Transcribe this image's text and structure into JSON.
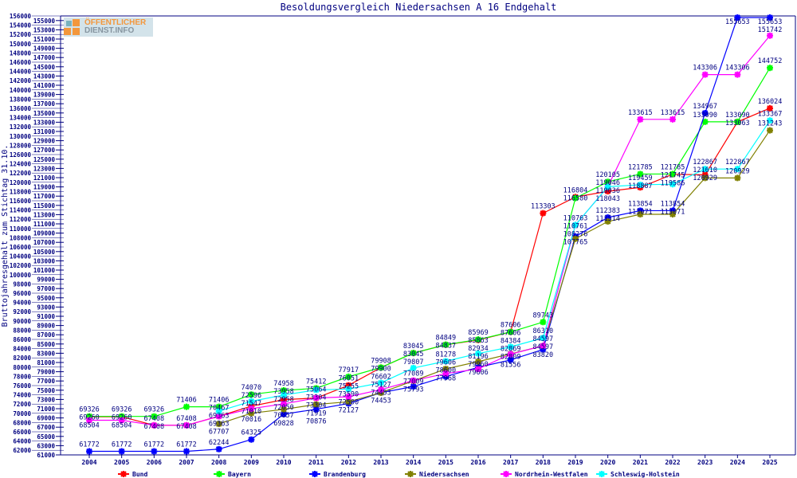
{
  "logo": {
    "line1": "ÖFFENTLICHER",
    "line2": "DIENST.INFO"
  },
  "chart_data": {
    "type": "line",
    "title": "Besoldungsvergleich Niedersachsen A 16 Endgehalt",
    "xlabel": "",
    "ylabel": "Bruttojahresgehalt zum Stichtag 31.10.",
    "ylim": [
      61000,
      156000
    ],
    "ystep": 1000,
    "grid": false,
    "legend_position": "bottom",
    "categories": [
      "2004",
      "2005",
      "2006",
      "2007",
      "2008",
      "2009",
      "2010",
      "2011",
      "2012",
      "2013",
      "2014",
      "2015",
      "2016",
      "2017",
      "2018",
      "2019",
      "2020",
      "2021",
      "2022",
      "2023",
      "2024",
      "2025"
    ],
    "series": [
      {
        "name": "Bund",
        "color": "#ff0000",
        "values": [
          69260,
          69260,
          67408,
          67408,
          69363,
          71547,
          72958,
          73304,
          76051,
          79900,
          83045,
          84837,
          85863,
          87606,
          113303,
          116804,
          118043,
          118887,
          121745,
          121610,
          133063,
          136024
        ]
      },
      {
        "name": "Bayern",
        "color": "#00ff00",
        "values": [
          69326,
          69326,
          69326,
          71406,
          71406,
          74070,
          74958,
          75412,
          77917,
          79908,
          83045,
          84849,
          85969,
          87606,
          89743,
          116580,
          120105,
          121785,
          121785,
          133090,
          133090,
          144752
        ]
      },
      {
        "name": "Brandenburg",
        "color": "#0000ff",
        "values": [
          61772,
          61772,
          61772,
          61772,
          62244,
          64325,
          69828,
          70876,
          72127,
          74453,
          75793,
          77968,
          79960,
          81556,
          83820,
          108276,
          112383,
          113854,
          113854,
          134967,
          155653,
          155653
        ]
      },
      {
        "name": "Niedersachsen",
        "color": "#808000",
        "values": [
          null,
          null,
          null,
          null,
          67707,
          70016,
          70857,
          71919,
          72500,
          74453,
          77009,
          79606,
          81196,
          82869,
          84597,
          107765,
          111514,
          113071,
          113071,
          120929,
          120929,
          131243
        ]
      },
      {
        "name": "Nordrhein-Westfalen",
        "color": "#ff00ff",
        "values": [
          68504,
          68504,
          67408,
          67408,
          69363,
          71010,
          72050,
          73304,
          73590,
          75127,
          77089,
          78600,
          79606,
          82809,
          84597,
          110761,
          119046,
          133615,
          133615,
          143306,
          143306,
          151742
        ]
      },
      {
        "name": "Schleswig-Holstein",
        "color": "#00ffff",
        "values": [
          null,
          null,
          null,
          null,
          70467,
          72596,
          73958,
          75064,
          75255,
          76602,
          79807,
          81278,
          82934,
          84384,
          86310,
          110763,
          119036,
          119459,
          119586,
          122867,
          122867,
          133367
        ]
      }
    ]
  }
}
